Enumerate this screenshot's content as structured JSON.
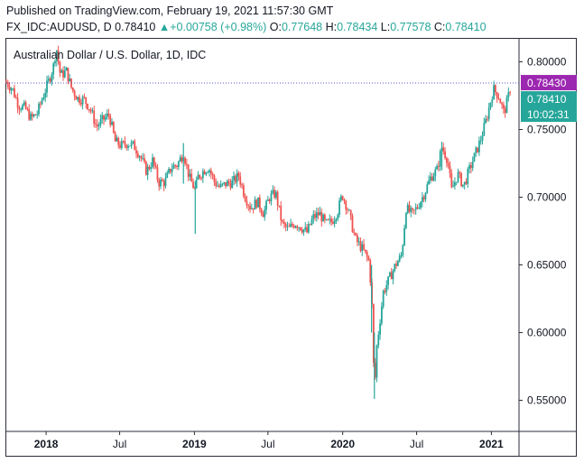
{
  "header": {
    "published": "Published on TradingView.com, February 19, 2021 11:57:30 GMT",
    "symbol": "FX_IDC:AUDUSD, D",
    "last": "0.78410",
    "change_arrow": "▲",
    "change": "+0.00758 (+0.98%)",
    "o_label": "O:",
    "o_value": "0.77648",
    "h_label": "H:",
    "h_value": "0.78434",
    "l_label": "L:",
    "l_value": "0.77578",
    "c_label": "C:",
    "c_value": "0.78410"
  },
  "colors": {
    "up": "#26a69a",
    "down": "#ef5350",
    "high_marker": "#9c27b0",
    "price_line": "#5b5bd6"
  },
  "chart_data": {
    "type": "candlestick",
    "title": "Australian Dollar / U.S. Dollar, 1D, IDC",
    "x_tick_labels": [
      "2018",
      "Jul",
      "2019",
      "Jul",
      "2020",
      "Jul",
      "2021"
    ],
    "x_ticks": [
      "2018-01-01",
      "2018-07-01",
      "2019-01-01",
      "2019-07-01",
      "2020-01-01",
      "2020-07-01",
      "2021-01-01"
    ],
    "x_range": [
      "2017-09-25",
      "2021-03-10"
    ],
    "y_tick_labels": [
      "0.80000",
      "0.75000",
      "0.70000",
      "0.65000",
      "0.60000",
      "0.55000"
    ],
    "y_ticks": [
      0.8,
      0.75,
      0.7,
      0.65,
      0.6,
      0.55
    ],
    "ylim": [
      0.527,
      0.817
    ],
    "price_labels": [
      {
        "text": "0.78430",
        "value": 0.7843,
        "kind": "high"
      },
      {
        "text": "0.78410",
        "value": 0.7841,
        "kind": "last"
      },
      {
        "text": "10:02:31",
        "value": 0.7841,
        "kind": "countdown"
      }
    ],
    "path": [
      [
        "2017-09-25",
        0.785
      ],
      [
        "2017-10-10",
        0.78
      ],
      [
        "2017-10-25",
        0.768
      ],
      [
        "2017-11-10",
        0.766
      ],
      [
        "2017-11-25",
        0.758
      ],
      [
        "2017-12-10",
        0.762
      ],
      [
        "2017-12-25",
        0.775
      ],
      [
        "2018-01-10",
        0.788
      ],
      [
        "2018-01-20",
        0.798
      ],
      [
        "2018-01-26",
        0.811
      ],
      [
        "2018-02-05",
        0.79
      ],
      [
        "2018-02-20",
        0.793
      ],
      [
        "2018-03-05",
        0.78
      ],
      [
        "2018-03-20",
        0.773
      ],
      [
        "2018-04-05",
        0.772
      ],
      [
        "2018-04-20",
        0.765
      ],
      [
        "2018-05-05",
        0.752
      ],
      [
        "2018-05-20",
        0.757
      ],
      [
        "2018-06-05",
        0.761
      ],
      [
        "2018-06-20",
        0.741
      ],
      [
        "2018-07-05",
        0.738
      ],
      [
        "2018-07-20",
        0.74
      ],
      [
        "2018-08-05",
        0.738
      ],
      [
        "2018-08-20",
        0.731
      ],
      [
        "2018-09-05",
        0.719
      ],
      [
        "2018-09-20",
        0.727
      ],
      [
        "2018-10-05",
        0.711
      ],
      [
        "2018-10-20",
        0.711
      ],
      [
        "2018-11-05",
        0.722
      ],
      [
        "2018-11-20",
        0.724
      ],
      [
        "2018-12-05",
        0.733
      ],
      [
        "2018-12-20",
        0.714
      ],
      [
        "2019-01-03",
        0.705
      ],
      [
        "2019-01-10",
        0.715
      ],
      [
        "2019-01-25",
        0.72
      ],
      [
        "2019-02-05",
        0.722
      ],
      [
        "2019-02-20",
        0.711
      ],
      [
        "2019-03-05",
        0.707
      ],
      [
        "2019-03-20",
        0.71
      ],
      [
        "2019-04-05",
        0.711
      ],
      [
        "2019-04-20",
        0.716
      ],
      [
        "2019-05-05",
        0.701
      ],
      [
        "2019-05-20",
        0.692
      ],
      [
        "2019-06-05",
        0.697
      ],
      [
        "2019-06-20",
        0.688
      ],
      [
        "2019-07-05",
        0.7
      ],
      [
        "2019-07-20",
        0.703
      ],
      [
        "2019-08-05",
        0.68
      ],
      [
        "2019-08-20",
        0.676
      ],
      [
        "2019-09-05",
        0.681
      ],
      [
        "2019-09-20",
        0.678
      ],
      [
        "2019-10-05",
        0.674
      ],
      [
        "2019-10-20",
        0.685
      ],
      [
        "2019-11-05",
        0.688
      ],
      [
        "2019-11-20",
        0.68
      ],
      [
        "2019-12-05",
        0.682
      ],
      [
        "2019-12-20",
        0.69
      ],
      [
        "2019-12-31",
        0.702
      ],
      [
        "2020-01-15",
        0.69
      ],
      [
        "2020-02-01",
        0.669
      ],
      [
        "2020-02-20",
        0.661
      ],
      [
        "2020-03-05",
        0.653
      ],
      [
        "2020-03-12",
        0.63
      ],
      [
        "2020-03-19",
        0.555
      ],
      [
        "2020-03-25",
        0.59
      ],
      [
        "2020-04-10",
        0.63
      ],
      [
        "2020-04-25",
        0.64
      ],
      [
        "2020-05-10",
        0.65
      ],
      [
        "2020-05-25",
        0.657
      ],
      [
        "2020-06-05",
        0.692
      ],
      [
        "2020-06-20",
        0.687
      ],
      [
        "2020-07-05",
        0.694
      ],
      [
        "2020-07-20",
        0.703
      ],
      [
        "2020-08-05",
        0.715
      ],
      [
        "2020-08-20",
        0.72
      ],
      [
        "2020-09-01",
        0.737
      ],
      [
        "2020-09-15",
        0.728
      ],
      [
        "2020-09-25",
        0.705
      ],
      [
        "2020-10-10",
        0.717
      ],
      [
        "2020-10-25",
        0.708
      ],
      [
        "2020-11-05",
        0.718
      ],
      [
        "2020-11-20",
        0.73
      ],
      [
        "2020-12-05",
        0.742
      ],
      [
        "2020-12-20",
        0.758
      ],
      [
        "2021-01-06",
        0.78
      ],
      [
        "2021-01-20",
        0.774
      ],
      [
        "2021-02-01",
        0.762
      ],
      [
        "2021-02-10",
        0.772
      ],
      [
        "2021-02-19",
        0.784
      ]
    ],
    "wicks": [
      [
        "2018-12-05",
        0.71,
        0.74
      ],
      [
        "2019-01-03",
        0.673,
        0.712
      ],
      [
        "2020-03-19",
        0.551,
        0.6
      ],
      [
        "2020-03-12",
        0.6,
        0.65
      ],
      [
        "2020-09-01",
        0.72,
        0.741
      ]
    ]
  }
}
